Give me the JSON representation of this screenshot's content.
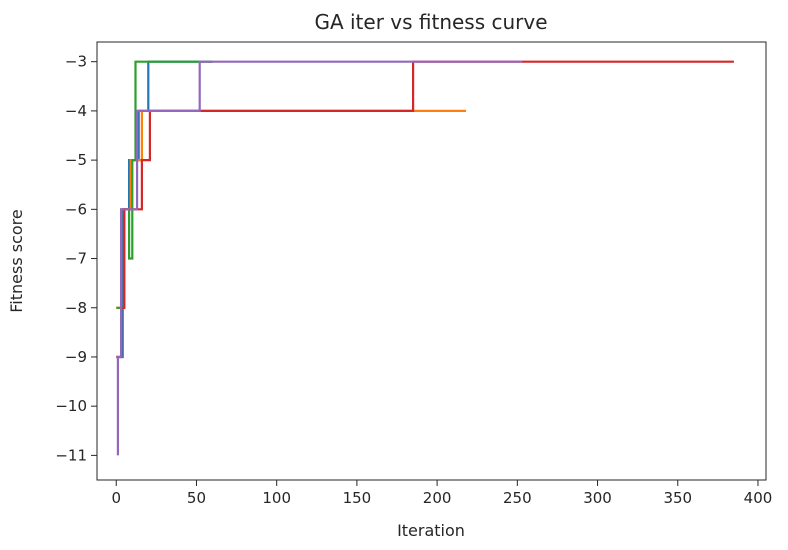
{
  "chart_data": {
    "type": "line",
    "title": "GA iter vs fitness curve",
    "xlabel": "Iteration",
    "ylabel": "Fitness score",
    "xlim": [
      -12,
      405
    ],
    "ylim": [
      -11.5,
      -2.6
    ],
    "x_ticks": [
      0,
      50,
      100,
      150,
      200,
      250,
      300,
      350,
      400
    ],
    "y_ticks": [
      -3,
      -4,
      -5,
      -6,
      -7,
      -8,
      -9,
      -10,
      -11
    ],
    "x_tick_labels": [
      "0",
      "50",
      "100",
      "150",
      "200",
      "250",
      "300",
      "350",
      "400"
    ],
    "y_tick_labels": [
      "−3",
      "−4",
      "−5",
      "−6",
      "−7",
      "−8",
      "−9",
      "−10",
      "−11"
    ],
    "grid": false,
    "series": [
      {
        "color": "#1f77b4",
        "x": [
          0,
          4,
          4,
          8,
          8,
          14,
          14,
          20,
          20,
          60
        ],
        "y": [
          -9,
          -9,
          -6,
          -6,
          -5,
          -5,
          -4,
          -4,
          -3,
          -3
        ]
      },
      {
        "color": "#ff7f0e",
        "x": [
          0,
          3,
          3,
          9,
          9,
          13,
          13,
          16,
          16,
          218
        ],
        "y": [
          -8,
          -8,
          -6,
          -6,
          -5,
          -5,
          -5,
          -5,
          -4,
          -4
        ]
      },
      {
        "color": "#2ca02c",
        "x": [
          0,
          5,
          5,
          8,
          8,
          10,
          10,
          12,
          12,
          60
        ],
        "y": [
          -8,
          -8,
          -6,
          -6,
          -7,
          -7,
          -5,
          -5,
          -3,
          -3
        ]
      },
      {
        "color": "#d62728",
        "x": [
          0,
          3,
          3,
          5,
          5,
          11,
          11,
          16,
          16,
          21,
          21,
          185,
          185,
          385
        ],
        "y": [
          -9,
          -9,
          -8,
          -8,
          -6,
          -6,
          -6,
          -6,
          -5,
          -5,
          -4,
          -4,
          -3,
          -3
        ]
      },
      {
        "color": "#9467bd",
        "x": [
          1,
          1,
          3,
          3,
          6,
          6,
          13,
          13,
          52,
          52,
          253
        ],
        "y": [
          -11,
          -9,
          -9,
          -6,
          -6,
          -6,
          -6,
          -4,
          -4,
          -3,
          -3
        ]
      }
    ]
  }
}
